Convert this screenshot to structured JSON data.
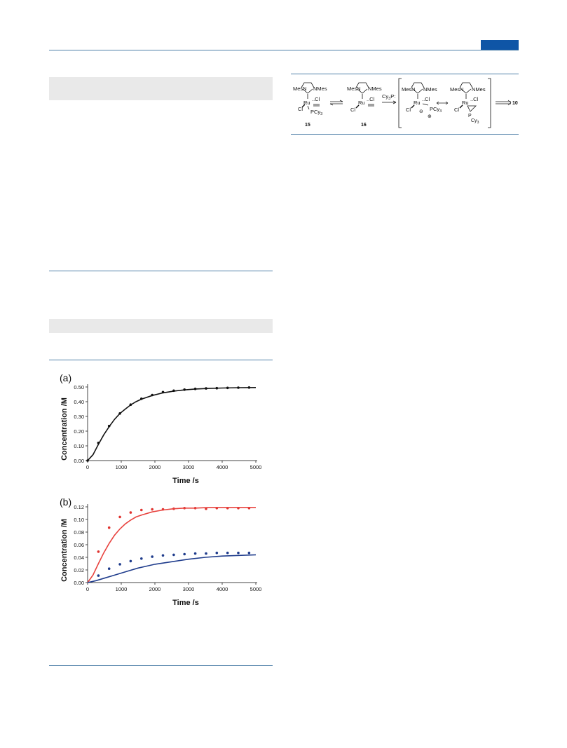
{
  "header": {
    "accent_color": "#0f55a6",
    "rule_color": "#4f7fa8"
  },
  "scheme": {
    "labels": {
      "mesn": "MesN",
      "nmes": "NMes",
      "ru": "Ru",
      "cl": "Cl",
      "cl_top": "..Cl",
      "pcy3": "PCy",
      "sub3": "3",
      "cy3p": "Cy",
      "cy3p_tail": "P:",
      "p": "P",
      "cy": "Cy",
      "minus": "⊖",
      "plus": "⊕"
    },
    "compounds": {
      "c15": "15",
      "c16": "16",
      "c10": "10"
    }
  },
  "chart_data": [
    {
      "type": "scatter",
      "panel_label": "(a)",
      "xlabel": "Time /s",
      "ylabel": "Concentration /M",
      "xlim": [
        0,
        5000
      ],
      "ylim": [
        0,
        0.5
      ],
      "xticks": [
        "0",
        "1000",
        "2000",
        "3000",
        "4000",
        "5000"
      ],
      "yticks": [
        "0.00",
        "0.10",
        "0.20",
        "0.30",
        "0.40",
        "0.50"
      ],
      "series": [
        {
          "kind": "points",
          "color": "#111111",
          "x": [
            0,
            320,
            640,
            960,
            1280,
            1600,
            1920,
            2240,
            2560,
            2880,
            3200,
            3520,
            3840,
            4160,
            4480,
            4800
          ],
          "y": [
            0.0,
            0.12,
            0.235,
            0.32,
            0.38,
            0.42,
            0.445,
            0.465,
            0.475,
            0.482,
            0.487,
            0.49,
            0.492,
            0.494,
            0.495,
            0.496
          ]
        },
        {
          "kind": "line",
          "color": "#111111",
          "x": [
            0,
            160,
            320,
            480,
            640,
            800,
            960,
            1120,
            1280,
            1440,
            1600,
            1920,
            2240,
            2560,
            2880,
            3200,
            3600,
            4000,
            4500,
            5000
          ],
          "y": [
            0.0,
            0.04,
            0.11,
            0.175,
            0.23,
            0.28,
            0.32,
            0.35,
            0.378,
            0.4,
            0.417,
            0.442,
            0.46,
            0.472,
            0.48,
            0.486,
            0.49,
            0.493,
            0.495,
            0.496
          ]
        }
      ]
    },
    {
      "type": "scatter",
      "panel_label": "(b)",
      "xlabel": "Time /s",
      "ylabel": "Concentration /M",
      "xlim": [
        0,
        5000
      ],
      "ylim": [
        0,
        0.12
      ],
      "xticks": [
        "0",
        "1000",
        "2000",
        "3000",
        "4000",
        "5000"
      ],
      "yticks": [
        "0.00",
        "0.02",
        "0.04",
        "0.06",
        "0.08",
        "0.10",
        "0.12"
      ],
      "series": [
        {
          "kind": "points",
          "color": "#e0332f",
          "x": [
            320,
            640,
            960,
            1280,
            1600,
            1920,
            2240,
            2560,
            2880,
            3200,
            3520,
            3840,
            4160,
            4480,
            4800
          ],
          "y": [
            0.049,
            0.087,
            0.104,
            0.111,
            0.115,
            0.116,
            0.116,
            0.117,
            0.118,
            0.118,
            0.117,
            0.118,
            0.118,
            0.118,
            0.118
          ]
        },
        {
          "kind": "line",
          "color": "#e8433f",
          "x": [
            0,
            160,
            320,
            480,
            640,
            800,
            960,
            1120,
            1280,
            1440,
            1600,
            1920,
            2240,
            2560,
            2880,
            3200,
            3600,
            4000,
            4500,
            5000
          ],
          "y": [
            0.0,
            0.012,
            0.03,
            0.047,
            0.062,
            0.075,
            0.085,
            0.093,
            0.099,
            0.104,
            0.107,
            0.112,
            0.115,
            0.117,
            0.118,
            0.118,
            0.119,
            0.119,
            0.119,
            0.119
          ]
        },
        {
          "kind": "points",
          "color": "#1f3c8c",
          "x": [
            320,
            640,
            960,
            1280,
            1600,
            1920,
            2240,
            2560,
            2880,
            3200,
            3520,
            3840,
            4160,
            4480,
            4800
          ],
          "y": [
            0.011,
            0.022,
            0.029,
            0.034,
            0.038,
            0.041,
            0.043,
            0.044,
            0.045,
            0.046,
            0.046,
            0.047,
            0.047,
            0.047,
            0.047
          ]
        },
        {
          "kind": "line",
          "color": "#1f3c8c",
          "x": [
            0,
            250,
            500,
            750,
            1000,
            1250,
            1500,
            1750,
            2000,
            2500,
            3000,
            3500,
            4000,
            4500,
            5000
          ],
          "y": [
            0.0,
            0.003,
            0.007,
            0.011,
            0.015,
            0.019,
            0.023,
            0.026,
            0.029,
            0.033,
            0.037,
            0.04,
            0.042,
            0.043,
            0.044
          ]
        }
      ]
    }
  ]
}
